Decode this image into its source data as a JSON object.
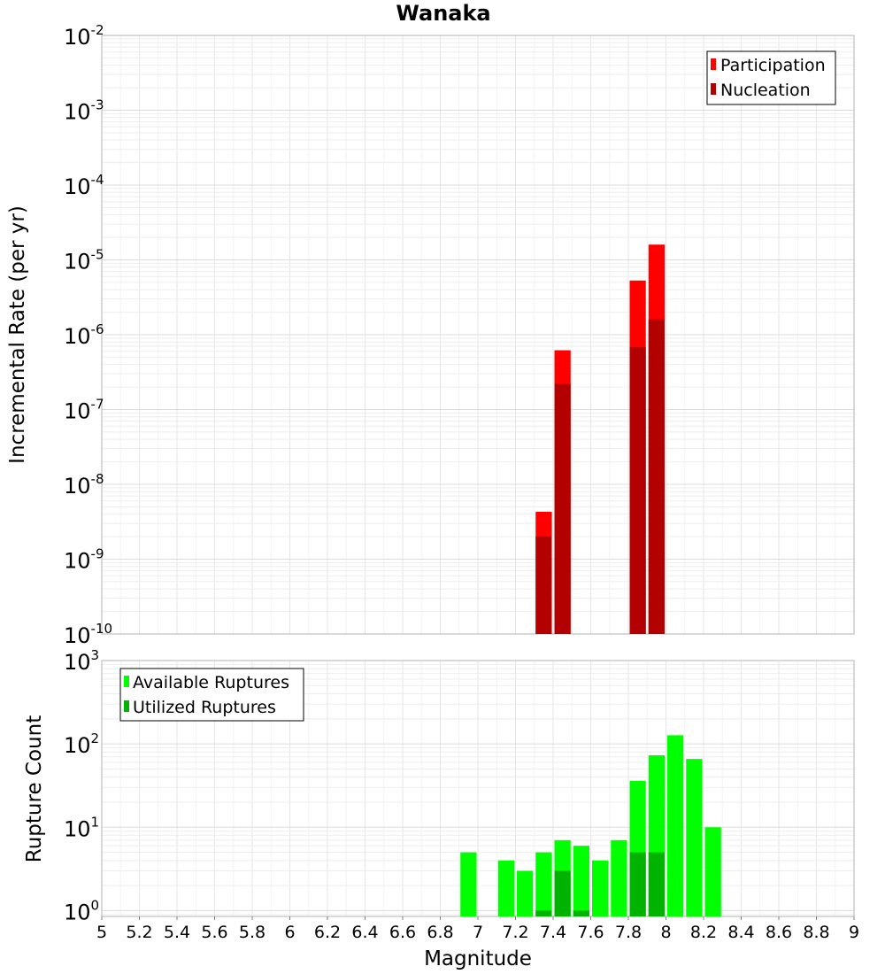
{
  "chart_data": [
    {
      "type": "bar",
      "title": "Wanaka",
      "xlabel": "Magnitude",
      "ylabel": "Incremental Rate (per yr)",
      "yscale": "log",
      "ylim_exp": [
        -10,
        -2
      ],
      "xlim": [
        5,
        9
      ],
      "bin_width": 0.1,
      "ytick_labels": [
        {
          "exp": -10,
          "base": "10",
          "sup": "-10"
        },
        {
          "exp": -9,
          "base": "10",
          "sup": "-9"
        },
        {
          "exp": -8,
          "base": "10",
          "sup": "-8"
        },
        {
          "exp": -7,
          "base": "10",
          "sup": "-7"
        },
        {
          "exp": -6,
          "base": "10",
          "sup": "-6"
        },
        {
          "exp": -5,
          "base": "10",
          "sup": "-5"
        },
        {
          "exp": -4,
          "base": "10",
          "sup": "-4"
        },
        {
          "exp": -3,
          "base": "10",
          "sup": "-3"
        },
        {
          "exp": -2,
          "base": "10",
          "sup": "-2"
        }
      ],
      "legend": {
        "position": "top-right",
        "entries": [
          "Participation",
          "Nucleation"
        ]
      },
      "series": [
        {
          "name": "Participation",
          "color": "#ff0000",
          "x": [
            7.35,
            7.45,
            7.85,
            7.95
          ],
          "values": [
            4.3e-09,
            6.2e-07,
            5.3e-06,
            1.6e-05
          ]
        },
        {
          "name": "Nucleation",
          "color": "#b30000",
          "x": [
            7.35,
            7.45,
            7.85,
            7.95
          ],
          "values": [
            2e-09,
            2.2e-07,
            6.8e-07,
            1.6e-06
          ]
        }
      ]
    },
    {
      "type": "bar",
      "xlabel": "Magnitude",
      "ylabel": "Rupture Count",
      "yscale": "log",
      "ylim_exp": [
        -0.07,
        3
      ],
      "xlim": [
        5,
        9
      ],
      "bin_width": 0.1,
      "x_tick_labels": [
        "5",
        "5.2",
        "5.4",
        "5.6",
        "5.8",
        "6",
        "6.2",
        "6.4",
        "6.6",
        "6.8",
        "7",
        "7.2",
        "7.4",
        "7.6",
        "7.8",
        "8",
        "8.2",
        "8.4",
        "8.6",
        "8.8",
        "9"
      ],
      "ytick_labels": [
        {
          "exp": 0,
          "base": "10",
          "sup": "0"
        },
        {
          "exp": 1,
          "base": "10",
          "sup": "1"
        },
        {
          "exp": 2,
          "base": "10",
          "sup": "2"
        },
        {
          "exp": 3,
          "base": "10",
          "sup": "3"
        }
      ],
      "legend": {
        "position": "top-left",
        "entries": [
          "Available Ruptures",
          "Utilized Ruptures"
        ]
      },
      "series": [
        {
          "name": "Available Ruptures",
          "color": "#00ff00",
          "x": [
            6.95,
            7.15,
            7.25,
            7.35,
            7.45,
            7.55,
            7.65,
            7.75,
            7.85,
            7.95,
            8.05,
            8.15,
            8.25
          ],
          "values": [
            5,
            4,
            3,
            5,
            7,
            6,
            4,
            7,
            36,
            73,
            127,
            66,
            10
          ]
        },
        {
          "name": "Utilized Ruptures",
          "color": "#00b300",
          "x": [
            7.35,
            7.45,
            7.55,
            7.85,
            7.95
          ],
          "values": [
            1,
            3,
            1,
            5,
            5
          ]
        }
      ]
    }
  ]
}
